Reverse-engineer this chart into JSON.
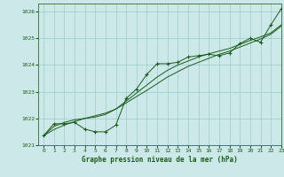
{
  "title": "Graphe pression niveau de la mer (hPa)",
  "bg_color": "#cce8e8",
  "grid_color": "#99cccc",
  "line_color": "#1a5c1a",
  "xlim": [
    -0.5,
    23
  ],
  "ylim": [
    1021.0,
    1026.3
  ],
  "yticks": [
    1021,
    1022,
    1023,
    1024,
    1025,
    1026
  ],
  "xticks": [
    0,
    1,
    2,
    3,
    4,
    5,
    6,
    7,
    8,
    9,
    10,
    11,
    12,
    13,
    14,
    15,
    16,
    17,
    18,
    19,
    20,
    21,
    22,
    23
  ],
  "hours": [
    0,
    1,
    2,
    3,
    4,
    5,
    6,
    7,
    8,
    9,
    10,
    11,
    12,
    13,
    14,
    15,
    16,
    17,
    18,
    19,
    20,
    21,
    22,
    23
  ],
  "pressure_marked": [
    1021.35,
    1021.8,
    1021.8,
    1021.85,
    1021.6,
    1021.5,
    1021.5,
    1021.75,
    1022.75,
    1023.1,
    1023.65,
    1024.05,
    1024.05,
    1024.1,
    1024.3,
    1024.35,
    1024.4,
    1024.35,
    1024.45,
    1024.8,
    1025.0,
    1024.85,
    1025.5,
    1026.1
  ],
  "pressure_smooth": [
    1021.35,
    1021.7,
    1021.85,
    1021.95,
    1022.0,
    1022.05,
    1022.15,
    1022.35,
    1022.65,
    1022.95,
    1023.25,
    1023.55,
    1023.8,
    1024.0,
    1024.15,
    1024.3,
    1024.42,
    1024.52,
    1024.62,
    1024.77,
    1024.92,
    1025.05,
    1025.2,
    1025.5
  ],
  "pressure_trend": [
    1021.35,
    1021.58,
    1021.75,
    1021.88,
    1022.0,
    1022.1,
    1022.2,
    1022.35,
    1022.58,
    1022.82,
    1023.05,
    1023.3,
    1023.55,
    1023.75,
    1023.95,
    1024.1,
    1024.25,
    1024.4,
    1024.52,
    1024.67,
    1024.82,
    1024.97,
    1025.15,
    1025.45
  ]
}
